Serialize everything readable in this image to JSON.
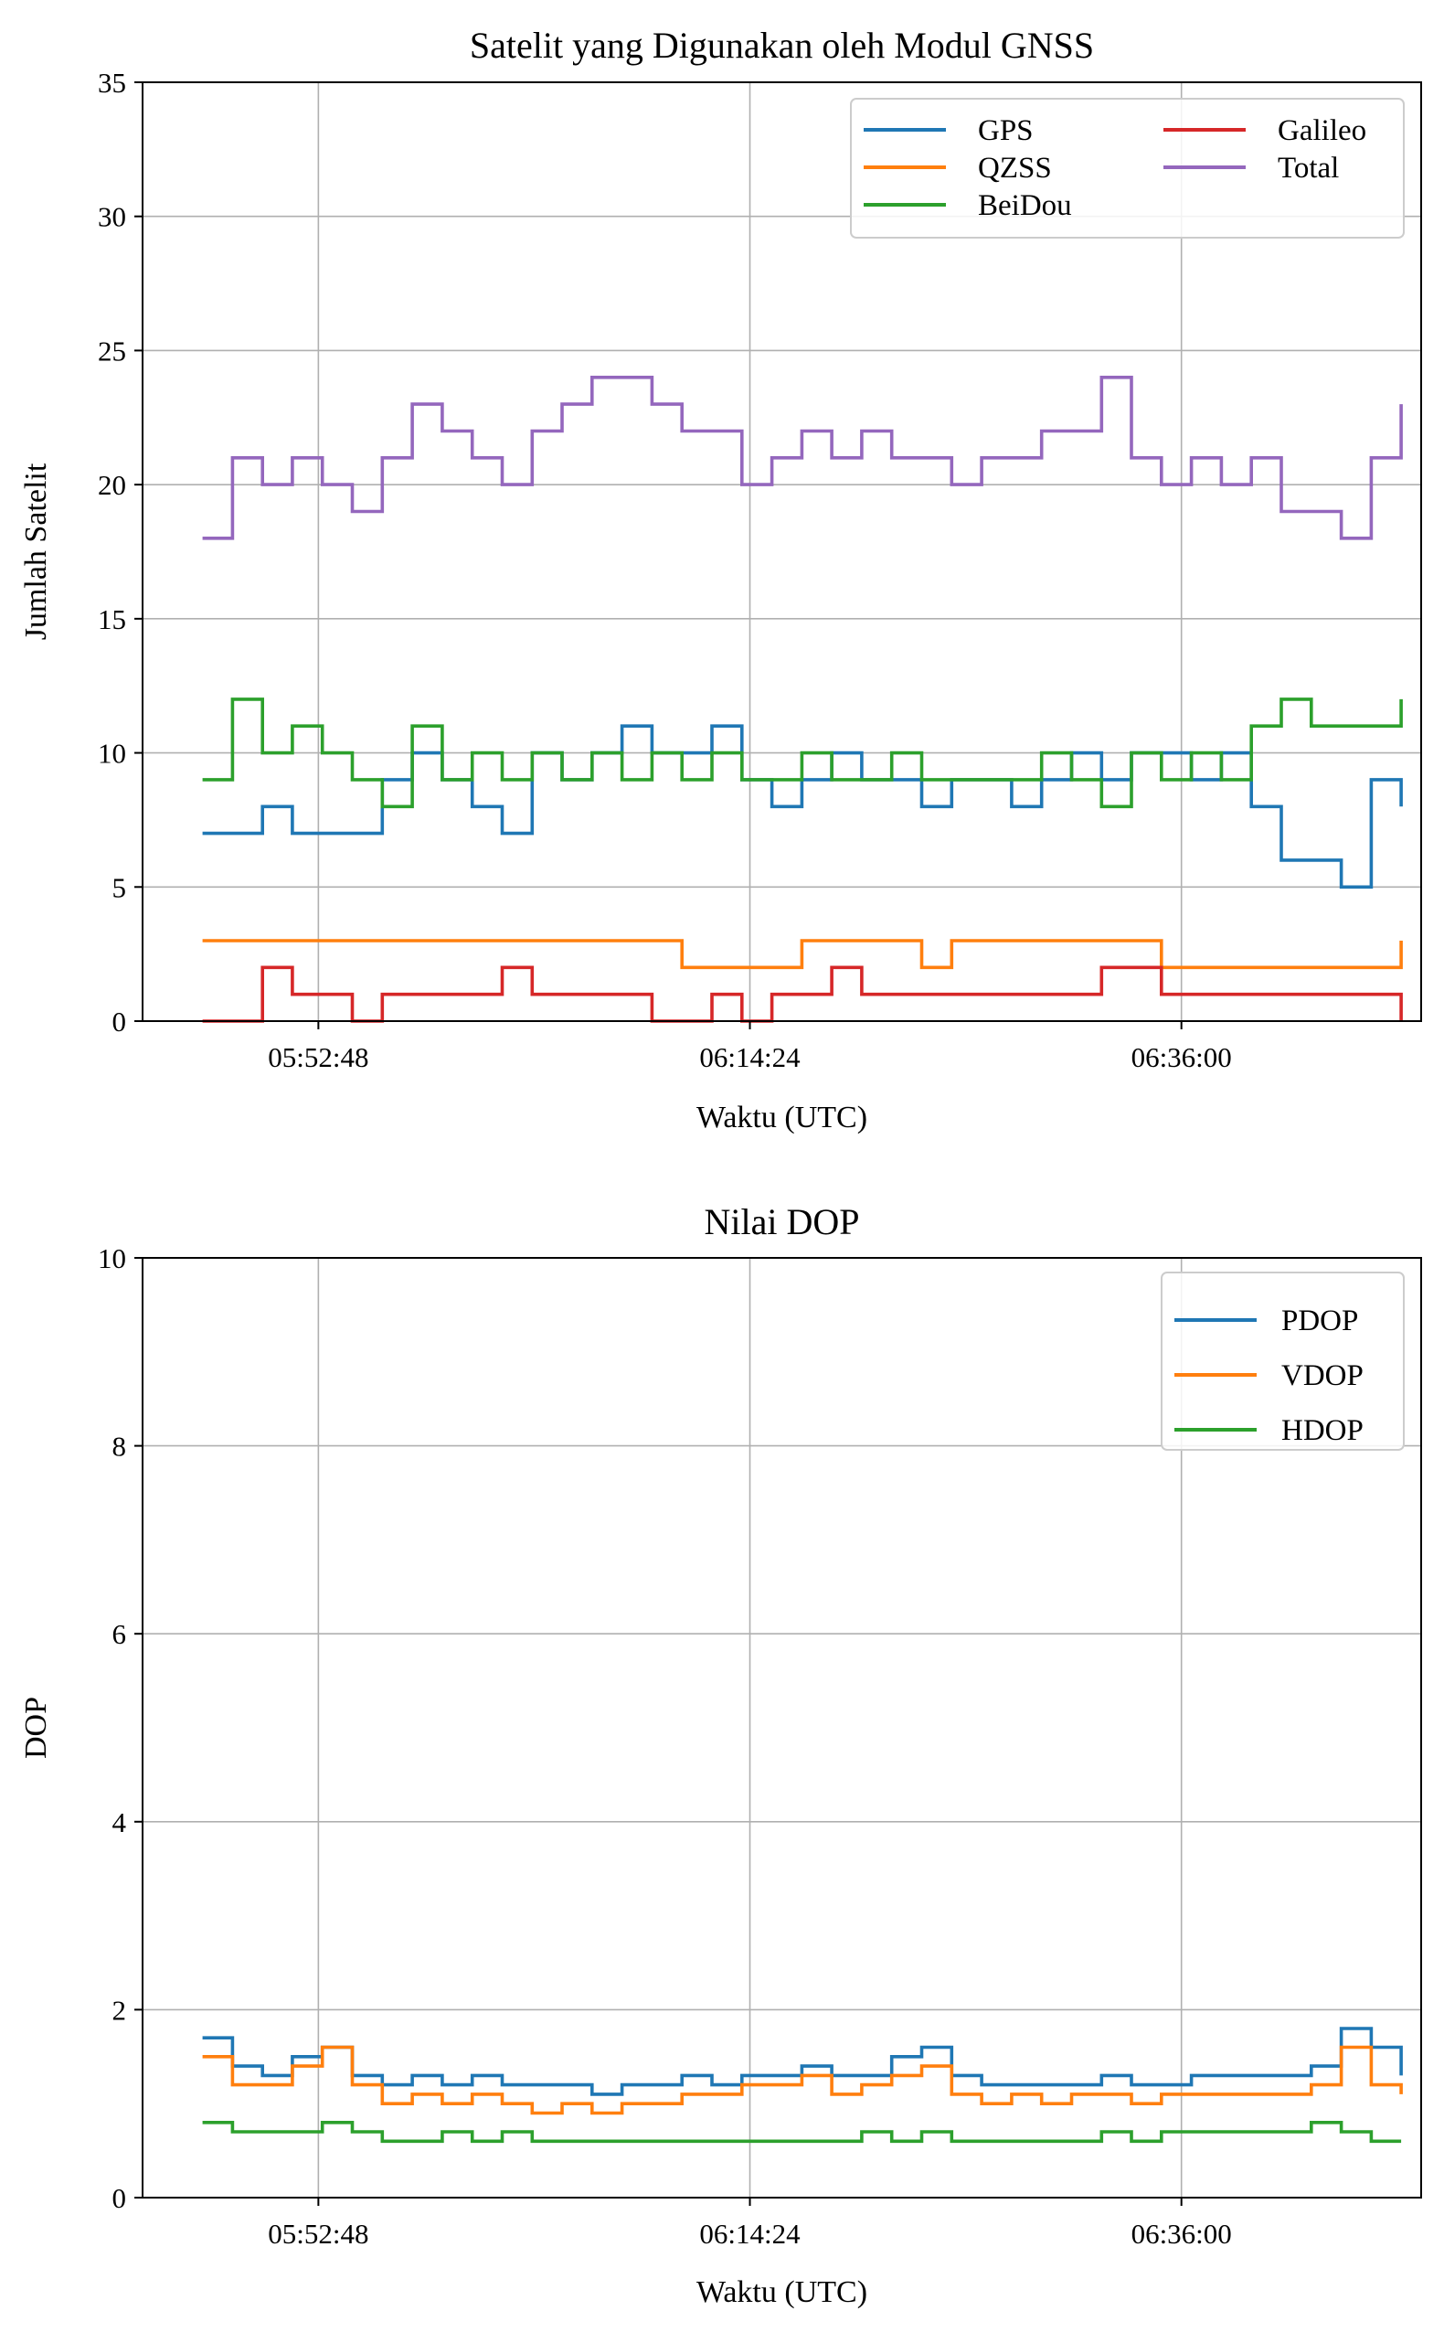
{
  "chart_data": [
    {
      "type": "line",
      "title": "Satelit yang Digunakan oleh Modul GNSS",
      "xlabel": "Waktu (UTC)",
      "ylabel": "Jumlah Satelit",
      "xlim": [
        "05:44:00",
        "06:48:00"
      ],
      "ylim": [
        0,
        35
      ],
      "xticks": [
        "05:52:48",
        "06:14:24",
        "06:36:00"
      ],
      "yticks": [
        "0",
        "5",
        "10",
        "15",
        "20",
        "25",
        "30",
        "35"
      ],
      "grid": true,
      "step": true,
      "legend": {
        "placement": "top-right",
        "columns": 2
      },
      "x": [
        "05:47:00",
        "05:48:30",
        "05:50:00",
        "05:51:30",
        "05:53:00",
        "05:54:30",
        "05:56:00",
        "05:57:30",
        "05:59:00",
        "06:00:30",
        "06:02:00",
        "06:03:30",
        "06:05:00",
        "06:06:30",
        "06:08:00",
        "06:09:30",
        "06:11:00",
        "06:12:30",
        "06:14:00",
        "06:15:30",
        "06:17:00",
        "06:18:30",
        "06:20:00",
        "06:21:30",
        "06:23:00",
        "06:24:30",
        "06:26:00",
        "06:27:30",
        "06:29:00",
        "06:30:30",
        "06:32:00",
        "06:33:30",
        "06:35:00",
        "06:36:30",
        "06:38:00",
        "06:39:30",
        "06:41:00",
        "06:42:30",
        "06:44:00",
        "06:45:30",
        "06:47:00"
      ],
      "series": [
        {
          "name": "GPS",
          "color": "#1f77b4",
          "values": [
            7,
            7,
            8,
            7,
            7,
            7,
            9,
            10,
            9,
            8,
            7,
            10,
            9,
            10,
            11,
            10,
            10,
            11,
            9,
            8,
            9,
            10,
            9,
            9,
            8,
            9,
            9,
            8,
            9,
            10,
            9,
            10,
            10,
            9,
            10,
            8,
            6,
            6,
            5,
            9,
            8
          ]
        },
        {
          "name": "QZSS",
          "color": "#ff7f0e",
          "values": [
            3,
            3,
            3,
            3,
            3,
            3,
            3,
            3,
            3,
            3,
            3,
            3,
            3,
            3,
            3,
            3,
            2,
            2,
            2,
            2,
            3,
            3,
            3,
            3,
            2,
            3,
            3,
            3,
            3,
            3,
            3,
            3,
            2,
            2,
            2,
            2,
            2,
            2,
            2,
            2,
            3
          ]
        },
        {
          "name": "BeiDou",
          "color": "#2ca02c",
          "values": [
            9,
            12,
            10,
            11,
            10,
            9,
            8,
            11,
            9,
            10,
            9,
            10,
            9,
            10,
            9,
            10,
            9,
            10,
            9,
            9,
            10,
            9,
            9,
            10,
            9,
            9,
            9,
            9,
            10,
            9,
            8,
            10,
            9,
            10,
            9,
            11,
            12,
            11,
            11,
            11,
            12
          ]
        },
        {
          "name": "Galileo",
          "color": "#d62728",
          "values": [
            0,
            0,
            2,
            1,
            1,
            0,
            1,
            1,
            1,
            1,
            2,
            1,
            1,
            1,
            1,
            0,
            0,
            1,
            0,
            1,
            1,
            2,
            1,
            1,
            1,
            1,
            1,
            1,
            1,
            1,
            2,
            2,
            1,
            1,
            1,
            1,
            1,
            1,
            1,
            1,
            0
          ]
        },
        {
          "name": "Total",
          "color": "#9467bd",
          "values": [
            18,
            21,
            20,
            21,
            20,
            19,
            21,
            23,
            22,
            21,
            20,
            22,
            23,
            24,
            24,
            23,
            22,
            22,
            20,
            21,
            22,
            21,
            22,
            21,
            21,
            20,
            21,
            21,
            22,
            22,
            24,
            21,
            20,
            21,
            20,
            21,
            19,
            19,
            18,
            21,
            23
          ]
        }
      ]
    },
    {
      "type": "line",
      "title": "Nilai DOP",
      "xlabel": "Waktu (UTC)",
      "ylabel": "DOP",
      "xlim": [
        "05:44:00",
        "06:48:00"
      ],
      "ylim": [
        0,
        10
      ],
      "xticks": [
        "05:52:48",
        "06:14:24",
        "06:36:00"
      ],
      "yticks": [
        "0",
        "2",
        "4",
        "6",
        "8",
        "10"
      ],
      "grid": true,
      "step": true,
      "legend": {
        "placement": "top-right",
        "columns": 1
      },
      "x": [
        "05:47:00",
        "05:48:30",
        "05:50:00",
        "05:51:30",
        "05:53:00",
        "05:54:30",
        "05:56:00",
        "05:57:30",
        "05:59:00",
        "06:00:30",
        "06:02:00",
        "06:03:30",
        "06:05:00",
        "06:06:30",
        "06:08:00",
        "06:09:30",
        "06:11:00",
        "06:12:30",
        "06:14:00",
        "06:15:30",
        "06:17:00",
        "06:18:30",
        "06:20:00",
        "06:21:30",
        "06:23:00",
        "06:24:30",
        "06:26:00",
        "06:27:30",
        "06:29:00",
        "06:30:30",
        "06:32:00",
        "06:33:30",
        "06:35:00",
        "06:36:30",
        "06:38:00",
        "06:39:30",
        "06:41:00",
        "06:42:30",
        "06:44:00",
        "06:45:30",
        "06:47:00"
      ],
      "series": [
        {
          "name": "PDOP",
          "color": "#1f77b4",
          "values": [
            1.7,
            1.4,
            1.3,
            1.5,
            1.6,
            1.3,
            1.2,
            1.3,
            1.2,
            1.3,
            1.2,
            1.2,
            1.2,
            1.1,
            1.2,
            1.2,
            1.3,
            1.2,
            1.3,
            1.3,
            1.4,
            1.3,
            1.3,
            1.5,
            1.6,
            1.3,
            1.2,
            1.2,
            1.2,
            1.2,
            1.3,
            1.2,
            1.2,
            1.3,
            1.3,
            1.3,
            1.3,
            1.4,
            1.8,
            1.6,
            1.3
          ]
        },
        {
          "name": "VDOP",
          "color": "#ff7f0e",
          "values": [
            1.5,
            1.2,
            1.2,
            1.4,
            1.6,
            1.2,
            1.0,
            1.1,
            1.0,
            1.1,
            1.0,
            0.9,
            1.0,
            0.9,
            1.0,
            1.0,
            1.1,
            1.1,
            1.2,
            1.2,
            1.3,
            1.1,
            1.2,
            1.3,
            1.4,
            1.1,
            1.0,
            1.1,
            1.0,
            1.1,
            1.1,
            1.0,
            1.1,
            1.1,
            1.1,
            1.1,
            1.1,
            1.2,
            1.6,
            1.2,
            1.1
          ]
        },
        {
          "name": "HDOP",
          "color": "#2ca02c",
          "values": [
            0.8,
            0.7,
            0.7,
            0.7,
            0.8,
            0.7,
            0.6,
            0.6,
            0.7,
            0.6,
            0.7,
            0.6,
            0.6,
            0.6,
            0.6,
            0.6,
            0.6,
            0.6,
            0.6,
            0.6,
            0.6,
            0.6,
            0.7,
            0.6,
            0.7,
            0.6,
            0.6,
            0.6,
            0.6,
            0.6,
            0.7,
            0.6,
            0.7,
            0.7,
            0.7,
            0.7,
            0.7,
            0.8,
            0.7,
            0.6,
            0.6
          ]
        }
      ]
    }
  ]
}
